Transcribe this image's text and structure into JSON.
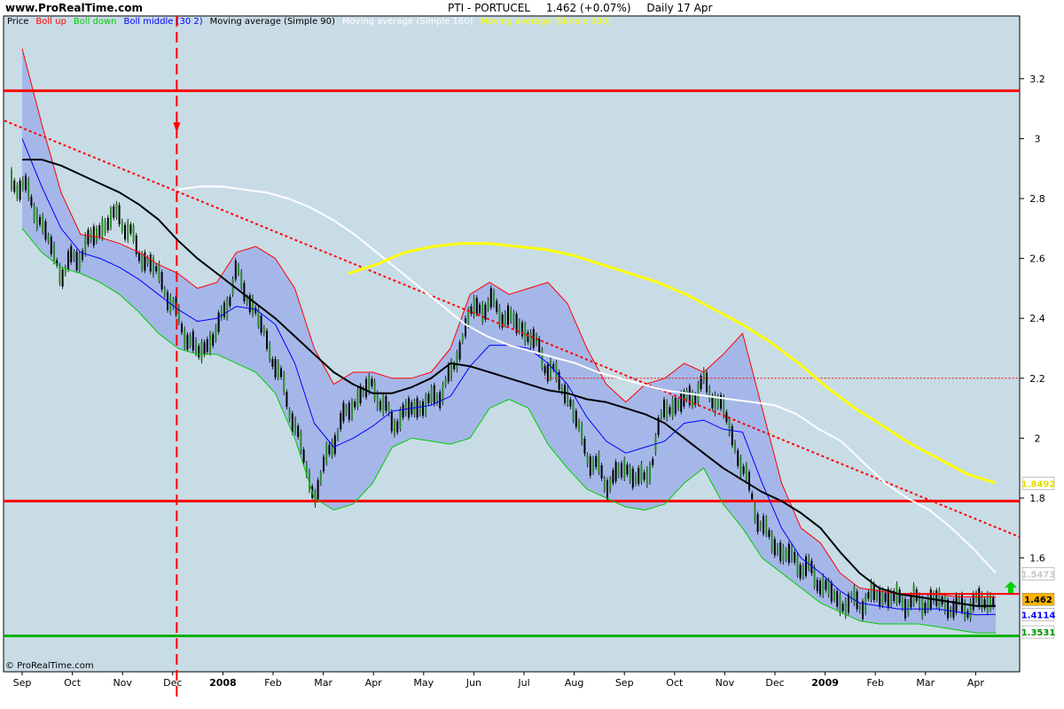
{
  "header": {
    "site": "www.ProRealTime.com",
    "instrument": "PTI - PORTUCEL",
    "price_change": "1.462 (+0.07%)",
    "period": "Daily  17 Apr"
  },
  "legend": [
    {
      "text": "Price",
      "color": "#000000"
    },
    {
      "text": "Boll up",
      "color": "#ff0000"
    },
    {
      "text": "Boll down",
      "color": "#00cc00"
    },
    {
      "text": "Boll middle (30 2)",
      "color": "#0000ff"
    },
    {
      "text": "Moving average (Simple 90)",
      "color": "#000000"
    },
    {
      "text": "Moving average (Simple 160)",
      "color": "#ffffff"
    },
    {
      "text": "Moving average (Simple 300)",
      "color": "#ffff00"
    }
  ],
  "footer": "© ProRealTime.com",
  "chart_data": {
    "type": "line",
    "background": "#c8dce6",
    "ylim": [
      1.27,
      3.35
    ],
    "y_ticks": [
      "1.6",
      "1.8",
      "2",
      "2.2",
      "2.4",
      "2.6",
      "2.8",
      "3",
      "3.2"
    ],
    "x_ticks": [
      "Sep",
      "Oct",
      "Nov",
      "Dec",
      "2008",
      "Feb",
      "Mar",
      "Apr",
      "May",
      "Jun",
      "Jul",
      "Aug",
      "Sep",
      "Oct",
      "Nov",
      "Dec",
      "2009",
      "Feb",
      "Mar",
      "Apr"
    ],
    "series": [
      {
        "name": "Price",
        "color": "#000000",
        "values": [
          2.85,
          2.72,
          2.55,
          2.62,
          2.7,
          2.75,
          2.62,
          2.55,
          2.4,
          2.28,
          2.35,
          2.55,
          2.42,
          2.25,
          2.05,
          1.8,
          2.0,
          2.12,
          2.18,
          2.05,
          2.1,
          2.12,
          2.2,
          2.42,
          2.45,
          2.4,
          2.35,
          2.24,
          2.15,
          1.95,
          1.85,
          1.9,
          1.85,
          2.1,
          2.12,
          2.18,
          2.1,
          1.9,
          1.7,
          1.62,
          1.58,
          1.52,
          1.45,
          1.45,
          1.48,
          1.46,
          1.45,
          1.46,
          1.43,
          1.45,
          1.462
        ]
      },
      {
        "name": "Boll up",
        "color": "#ff0000",
        "values": [
          3.3,
          3.05,
          2.82,
          2.68,
          2.67,
          2.65,
          2.62,
          2.58,
          2.55,
          2.5,
          2.52,
          2.62,
          2.64,
          2.6,
          2.5,
          2.3,
          2.18,
          2.22,
          2.22,
          2.2,
          2.2,
          2.22,
          2.3,
          2.48,
          2.52,
          2.48,
          2.5,
          2.52,
          2.45,
          2.3,
          2.18,
          2.12,
          2.18,
          2.2,
          2.25,
          2.22,
          2.28,
          2.35,
          2.1,
          1.85,
          1.7,
          1.65,
          1.55,
          1.5,
          1.49,
          1.48,
          1.48,
          1.48,
          1.47,
          1.47,
          1.47
        ]
      },
      {
        "name": "Boll down",
        "color": "#00cc00",
        "values": [
          2.7,
          2.62,
          2.57,
          2.55,
          2.52,
          2.48,
          2.42,
          2.35,
          2.3,
          2.28,
          2.28,
          2.25,
          2.22,
          2.15,
          2.0,
          1.8,
          1.76,
          1.78,
          1.85,
          1.97,
          2.0,
          1.99,
          1.98,
          2.0,
          2.1,
          2.13,
          2.1,
          1.98,
          1.9,
          1.83,
          1.8,
          1.77,
          1.76,
          1.78,
          1.85,
          1.9,
          1.78,
          1.7,
          1.6,
          1.55,
          1.5,
          1.45,
          1.42,
          1.39,
          1.38,
          1.38,
          1.38,
          1.37,
          1.36,
          1.35,
          1.35
        ]
      },
      {
        "name": "Boll middle (30 2)",
        "color": "#0000ff",
        "values": [
          3.0,
          2.84,
          2.7,
          2.62,
          2.6,
          2.57,
          2.53,
          2.48,
          2.43,
          2.39,
          2.4,
          2.44,
          2.43,
          2.38,
          2.25,
          2.05,
          1.97,
          2.0,
          2.04,
          2.09,
          2.1,
          2.11,
          2.14,
          2.24,
          2.31,
          2.31,
          2.3,
          2.25,
          2.18,
          2.07,
          1.99,
          1.95,
          1.97,
          1.99,
          2.05,
          2.06,
          2.03,
          2.02,
          1.85,
          1.7,
          1.6,
          1.55,
          1.49,
          1.45,
          1.44,
          1.43,
          1.43,
          1.43,
          1.42,
          1.41,
          1.4114
        ]
      },
      {
        "name": "Moving average (Simple 90)",
        "color": "#000000",
        "values": [
          2.93,
          2.93,
          2.91,
          2.88,
          2.85,
          2.82,
          2.78,
          2.73,
          2.66,
          2.6,
          2.55,
          2.5,
          2.45,
          2.4,
          2.34,
          2.28,
          2.22,
          2.18,
          2.15,
          2.15,
          2.17,
          2.2,
          2.25,
          2.24,
          2.22,
          2.2,
          2.18,
          2.16,
          2.15,
          2.13,
          2.12,
          2.1,
          2.08,
          2.05,
          2.0,
          1.95,
          1.9,
          1.86,
          1.82,
          1.79,
          1.75,
          1.7,
          1.62,
          1.55,
          1.5,
          1.48,
          1.47,
          1.46,
          1.45,
          1.44,
          1.44
        ]
      },
      {
        "name": "Moving average (Simple 160)",
        "color": "#ffffff",
        "values": [
          2.83,
          2.84,
          2.84,
          2.83,
          2.82,
          2.8,
          2.77,
          2.73,
          2.68,
          2.62,
          2.56,
          2.5,
          2.44,
          2.38,
          2.34,
          2.31,
          2.29,
          2.27,
          2.25,
          2.22,
          2.2,
          2.18,
          2.16,
          2.15,
          2.14,
          2.13,
          2.12,
          2.11,
          2.08,
          2.03,
          1.99,
          1.92,
          1.85,
          1.8,
          1.76,
          1.7,
          1.63,
          1.55
        ]
      },
      {
        "name": "Moving average (Simple 300)",
        "color": "#ffff00",
        "values": [
          2.55,
          2.58,
          2.62,
          2.64,
          2.65,
          2.65,
          2.64,
          2.63,
          2.61,
          2.58,
          2.55,
          2.52,
          2.48,
          2.43,
          2.38,
          2.32,
          2.25,
          2.17,
          2.1,
          2.04,
          1.98,
          1.93,
          1.88,
          1.85
        ]
      }
    ],
    "series_start_months": [
      0,
      0,
      0,
      0,
      0,
      3.1,
      6.5
    ],
    "horizontal_lines": [
      {
        "value": 3.16,
        "color": "#ff0000"
      },
      {
        "value": 1.79,
        "color": "#ff0000"
      },
      {
        "value": 1.34,
        "color": "#00b000"
      },
      {
        "value": 1.48,
        "color": "#ff0000"
      }
    ],
    "trendline": {
      "color": "#ff0000",
      "from": [
        0,
        3.06
      ],
      "to": [
        19.4,
        1.67
      ]
    },
    "dotted_level": {
      "value": 2.2,
      "color": "#ff0000",
      "from_month": 10.4
    },
    "vertical_marker": {
      "month": 3.08,
      "color": "#ff0000"
    },
    "right_labels": [
      {
        "text": "1.462",
        "value": 1.462,
        "bg": "#ffb400",
        "fg": "#000000"
      },
      {
        "text": "1.4114",
        "value": 1.4114,
        "bg": "#ffffff",
        "fg": "#0000ff"
      },
      {
        "text": "1.3531",
        "value": 1.3531,
        "bg": "#ffffff",
        "fg": "#009000"
      },
      {
        "text": "1.5473",
        "value": 1.5473,
        "bg": "#ffffff",
        "fg": "#c8c8c8"
      },
      {
        "text": "1.8492",
        "value": 1.8492,
        "bg": "#ffffff",
        "fg": "#e0e000"
      }
    ],
    "accent_color": "#ff0000"
  }
}
